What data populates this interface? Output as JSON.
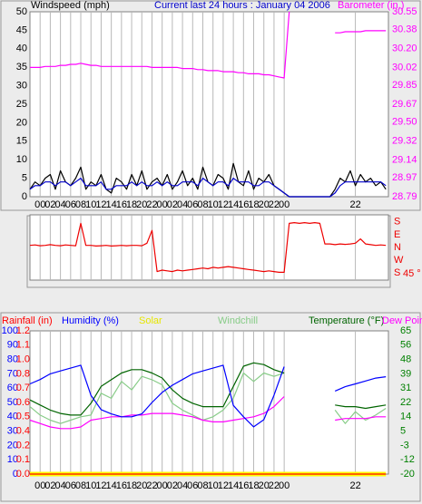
{
  "chart_data": [
    {
      "type": "line",
      "title": "Current last 24 hours : January 04 2006",
      "ylabel": "Windspeed (mph)",
      "y2label": "Barometer (in.)",
      "x": [
        -2,
        -1,
        0,
        1,
        2,
        3,
        4,
        5,
        6,
        7,
        8,
        9,
        10,
        11,
        12,
        13,
        14,
        15,
        16,
        17,
        18,
        19,
        20,
        21,
        22,
        23,
        24,
        25,
        26,
        27,
        28,
        29,
        30,
        31,
        32,
        33,
        34,
        35,
        36,
        37,
        38,
        39,
        40,
        41,
        42,
        43,
        44,
        45,
        46,
        47,
        48,
        49,
        50,
        51,
        52,
        53,
        54,
        55,
        56,
        57,
        58,
        59,
        60,
        61,
        62,
        63,
        64,
        65,
        66,
        67,
        68
      ],
      "xlim": [
        -2,
        68.5
      ],
      "xticks": [
        {
          "value": 0,
          "label": "00"
        },
        {
          "value": 2,
          "label": "02"
        },
        {
          "value": 4,
          "label": "04"
        },
        {
          "value": 6,
          "label": "06"
        },
        {
          "value": 8,
          "label": "08"
        },
        {
          "value": 10,
          "label": "10"
        },
        {
          "value": 12,
          "label": "12"
        },
        {
          "value": 14,
          "label": "14"
        },
        {
          "value": 16,
          "label": "16"
        },
        {
          "value": 18,
          "label": "18"
        },
        {
          "value": 20,
          "label": "20"
        },
        {
          "value": 22,
          "label": "22"
        },
        {
          "value": 24,
          "label": "00"
        },
        {
          "value": 26,
          "label": "02"
        },
        {
          "value": 28,
          "label": "04"
        },
        {
          "value": 30,
          "label": "06"
        },
        {
          "value": 32,
          "label": "08"
        },
        {
          "value": 34,
          "label": "10"
        },
        {
          "value": 36,
          "label": "12"
        },
        {
          "value": 38,
          "label": "14"
        },
        {
          "value": 40,
          "label": "16"
        },
        {
          "value": 42,
          "label": "18"
        },
        {
          "value": 44,
          "label": "20"
        },
        {
          "value": 46,
          "label": "22"
        },
        {
          "value": 48,
          "label": "00"
        },
        {
          "value": 62,
          "label": "22"
        }
      ],
      "ylim": [
        0,
        50
      ],
      "yticks": [
        0,
        5,
        10,
        15,
        20,
        25,
        30,
        35,
        40,
        45,
        50
      ],
      "y2lim": [
        28.79,
        30.55
      ],
      "y2ticks": [
        {
          "value": 28.79,
          "label": "28.79"
        },
        {
          "value": 28.97,
          "label": "28.97"
        },
        {
          "value": 29.14,
          "label": "29.14"
        },
        {
          "value": 29.32,
          "label": "29.32"
        },
        {
          "value": 29.5,
          "label": "29.50"
        },
        {
          "value": 29.67,
          "label": "29.67"
        },
        {
          "value": 29.85,
          "label": "29.85"
        },
        {
          "value": 30.02,
          "label": "30.02"
        },
        {
          "value": 30.2,
          "label": "30.20"
        },
        {
          "value": 30.38,
          "label": "30.38"
        },
        {
          "value": 30.55,
          "label": "30.55"
        }
      ],
      "grid": true,
      "series": [
        {
          "color": "#000000",
          "values": [
            2,
            4,
            3,
            5,
            6,
            2,
            7,
            4,
            3,
            5,
            8,
            2,
            4,
            3,
            6,
            2,
            1,
            5,
            4,
            2,
            6,
            3,
            7,
            2,
            4,
            5,
            3,
            6,
            2,
            4,
            7,
            3,
            5,
            2,
            8,
            4,
            3,
            6,
            5,
            2,
            9,
            4,
            3,
            7,
            2,
            5,
            4,
            6,
            3,
            2,
            1,
            0,
            0,
            0,
            0,
            0,
            0,
            0,
            0,
            0,
            2,
            5,
            4,
            7,
            3,
            6,
            4,
            5,
            3,
            4,
            2
          ]
        },
        {
          "color": "#0000cc",
          "values": [
            2,
            3,
            3,
            4,
            4,
            3,
            4,
            4,
            3,
            4,
            5,
            3,
            3,
            3,
            4,
            2,
            2,
            3,
            3,
            3,
            4,
            3,
            4,
            3,
            3,
            4,
            3,
            4,
            3,
            3,
            4,
            4,
            4,
            3,
            5,
            4,
            3,
            4,
            4,
            3,
            5,
            4,
            4,
            4,
            3,
            3,
            4,
            4,
            3,
            2,
            1,
            0,
            0,
            0,
            0,
            0,
            0,
            0,
            0,
            0,
            1,
            3,
            4,
            4,
            4,
            4,
            4,
            4,
            4,
            4,
            3
          ]
        },
        {
          "color": "#ff00ff",
          "axis": "y2",
          "values": [
            30.02,
            30.02,
            30.02,
            30.03,
            30.03,
            30.03,
            30.04,
            30.04,
            30.05,
            30.05,
            30.06,
            30.05,
            30.04,
            30.04,
            30.03,
            30.03,
            30.03,
            30.03,
            30.03,
            30.03,
            30.03,
            30.03,
            30.03,
            30.03,
            30.02,
            30.02,
            30.02,
            30.02,
            30.02,
            30.02,
            30.01,
            30.01,
            30.01,
            30.0,
            30.0,
            29.99,
            29.99,
            29.99,
            29.98,
            29.98,
            29.98,
            29.97,
            29.97,
            29.96,
            29.96,
            29.96,
            29.95,
            29.95,
            29.94,
            29.93,
            29.92,
            30.55,
            null,
            null,
            null,
            null,
            null,
            null,
            null,
            null,
            30.35,
            30.35,
            30.36,
            30.36,
            30.36,
            30.36,
            30.37,
            30.37,
            30.37,
            30.37,
            30.37
          ]
        }
      ]
    },
    {
      "type": "line",
      "annotation": "45 °",
      "x": [
        -2,
        -1,
        0,
        1,
        2,
        3,
        4,
        5,
        6,
        7,
        8,
        9,
        10,
        11,
        12,
        13,
        14,
        15,
        16,
        17,
        18,
        19,
        20,
        21,
        22,
        23,
        24,
        25,
        26,
        27,
        28,
        29,
        30,
        31,
        32,
        33,
        34,
        35,
        36,
        37,
        38,
        39,
        40,
        41,
        42,
        43,
        44,
        45,
        46,
        47,
        48,
        49,
        50,
        51,
        52,
        53,
        54,
        55,
        56,
        57,
        58,
        59,
        60,
        61,
        62,
        63,
        64,
        65,
        66,
        67,
        68
      ],
      "xlim": [
        -2,
        68.5
      ],
      "ylim": [
        -230,
        230
      ],
      "yticks": [
        {
          "value": -180,
          "label": "S"
        },
        {
          "value": -90,
          "label": "W"
        },
        {
          "value": 0,
          "label": "N"
        },
        {
          "value": 90,
          "label": "E"
        },
        {
          "value": 180,
          "label": "S"
        }
      ],
      "series": [
        {
          "color": "#ee0000",
          "values": [
            15,
            18,
            12,
            15,
            20,
            15,
            12,
            18,
            15,
            12,
            170,
            15,
            15,
            10,
            12,
            15,
            10,
            12,
            15,
            12,
            15,
            15,
            12,
            30,
            120,
            -170,
            -160,
            -165,
            -170,
            -160,
            -165,
            -160,
            -155,
            -150,
            -145,
            -150,
            -140,
            -145,
            -140,
            -135,
            -140,
            -145,
            -150,
            -155,
            -160,
            -165,
            -170,
            -165,
            -170,
            -175,
            -175,
            170,
            175,
            170,
            175,
            170,
            175,
            170,
            25,
            25,
            20,
            25,
            22,
            25,
            30,
            60,
            25,
            20,
            15,
            18,
            15
          ]
        }
      ]
    },
    {
      "type": "line",
      "ylabel": "Humidity (%)",
      "y2label": "Temperature (°F)",
      "y3label": "Rainfall (in)",
      "x": [
        -2,
        0,
        2,
        4,
        6,
        8,
        10,
        12,
        14,
        16,
        18,
        20,
        22,
        24,
        26,
        28,
        30,
        32,
        34,
        36,
        38,
        40,
        42,
        44,
        46,
        48,
        50,
        52,
        54,
        56,
        58,
        60,
        62,
        64,
        66,
        68
      ],
      "xlim": [
        -2,
        68.5
      ],
      "xticks": [
        {
          "value": 0,
          "label": "00"
        },
        {
          "value": 2,
          "label": "02"
        },
        {
          "value": 4,
          "label": "04"
        },
        {
          "value": 6,
          "label": "06"
        },
        {
          "value": 8,
          "label": "08"
        },
        {
          "value": 10,
          "label": "10"
        },
        {
          "value": 12,
          "label": "12"
        },
        {
          "value": 14,
          "label": "14"
        },
        {
          "value": 16,
          "label": "16"
        },
        {
          "value": 18,
          "label": "18"
        },
        {
          "value": 20,
          "label": "20"
        },
        {
          "value": 22,
          "label": "22"
        },
        {
          "value": 24,
          "label": "00"
        },
        {
          "value": 26,
          "label": "02"
        },
        {
          "value": 28,
          "label": "04"
        },
        {
          "value": 30,
          "label": "06"
        },
        {
          "value": 32,
          "label": "08"
        },
        {
          "value": 34,
          "label": "10"
        },
        {
          "value": 36,
          "label": "12"
        },
        {
          "value": 38,
          "label": "14"
        },
        {
          "value": 40,
          "label": "16"
        },
        {
          "value": 42,
          "label": "18"
        },
        {
          "value": 44,
          "label": "20"
        },
        {
          "value": 46,
          "label": "22"
        },
        {
          "value": 48,
          "label": "00"
        },
        {
          "value": 62,
          "label": "22"
        }
      ],
      "ylim": [
        0,
        100
      ],
      "yticks": [
        0,
        10,
        20,
        30,
        40,
        50,
        60,
        70,
        80,
        90,
        100
      ],
      "y2lim": [
        -20,
        65
      ],
      "y2ticks": [
        {
          "value": -20,
          "label": "-20"
        },
        {
          "value": -11.5,
          "label": "-12"
        },
        {
          "value": -3,
          "label": "-3"
        },
        {
          "value": 5.5,
          "label": "5"
        },
        {
          "value": 14,
          "label": "14"
        },
        {
          "value": 22.5,
          "label": "22"
        },
        {
          "value": 31,
          "label": "31"
        },
        {
          "value": 39.5,
          "label": "39"
        },
        {
          "value": 48,
          "label": "48"
        },
        {
          "value": 56.5,
          "label": "56"
        },
        {
          "value": 65,
          "label": "65"
        }
      ],
      "y3lim": [
        0,
        1.2
      ],
      "y3ticks": [
        {
          "value": 0,
          "label": "0.0"
        },
        {
          "value": 0.12,
          "label": "0.1"
        },
        {
          "value": 0.24,
          "label": "0.2"
        },
        {
          "value": 0.36,
          "label": "0.4"
        },
        {
          "value": 0.48,
          "label": "0.5"
        },
        {
          "value": 0.6,
          "label": "0.6"
        },
        {
          "value": 0.72,
          "label": "0.7"
        },
        {
          "value": 0.84,
          "label": "0.8"
        },
        {
          "value": 0.96,
          "label": "1.0"
        },
        {
          "value": 1.08,
          "label": "1.1"
        },
        {
          "value": 1.2,
          "label": "1.2"
        }
      ],
      "grid": true,
      "series": [
        {
          "name": "Solar",
          "color": "#ffff00",
          "values": [
            0,
            0,
            0,
            0,
            0,
            0,
            0,
            0,
            0,
            0,
            0,
            0,
            0,
            0,
            0,
            0,
            0,
            0,
            0,
            0,
            0,
            0,
            0,
            0,
            0,
            0,
            0,
            0,
            0,
            0,
            0,
            0,
            0,
            0,
            0,
            0
          ]
        },
        {
          "color": "#ff0000",
          "axis": "y3",
          "values": [
            0,
            0,
            0,
            0,
            0,
            0,
            0,
            0,
            0,
            0,
            0,
            0,
            0,
            0,
            0,
            0,
            0,
            0,
            0,
            0,
            0,
            0,
            0,
            0,
            0,
            0,
            0,
            0,
            0,
            0,
            0,
            0,
            0,
            0,
            0,
            0
          ]
        },
        {
          "name": "Windchill",
          "color": "#88cc88",
          "axis": "y2",
          "values": [
            20,
            15,
            12,
            10,
            12,
            14,
            15,
            28,
            25,
            35,
            30,
            38,
            36,
            33,
            22,
            18,
            15,
            12,
            14,
            18,
            25,
            40,
            35,
            40,
            38,
            40,
            null,
            null,
            null,
            null,
            18,
            10,
            17,
            12,
            15,
            19
          ]
        },
        {
          "color": "#006400",
          "axis": "y2",
          "values": [
            24,
            21,
            18,
            16,
            15,
            15,
            22,
            32,
            36,
            40,
            42,
            42,
            40,
            37,
            30,
            25,
            22,
            20,
            20,
            20,
            32,
            44,
            46,
            45,
            42,
            40,
            null,
            null,
            null,
            null,
            21,
            20,
            20,
            19,
            20,
            21
          ]
        },
        {
          "name": "Dew Point",
          "color": "#ff00ff",
          "axis": "y2",
          "values": [
            12,
            10,
            8,
            7,
            7,
            8,
            12,
            13,
            14,
            14,
            15,
            15,
            16,
            16,
            16,
            15,
            14,
            12,
            11,
            11,
            12,
            13,
            14,
            16,
            20,
            26,
            null,
            null,
            null,
            null,
            12,
            13,
            13,
            13,
            14,
            14
          ]
        },
        {
          "color": "#0000ff",
          "values": [
            63,
            66,
            70,
            72,
            74,
            76,
            55,
            45,
            42,
            40,
            40,
            42,
            50,
            57,
            62,
            66,
            70,
            72,
            74,
            76,
            48,
            40,
            33,
            38,
            55,
            75,
            null,
            null,
            null,
            null,
            58,
            61,
            63,
            65,
            67,
            68
          ]
        }
      ]
    }
  ]
}
